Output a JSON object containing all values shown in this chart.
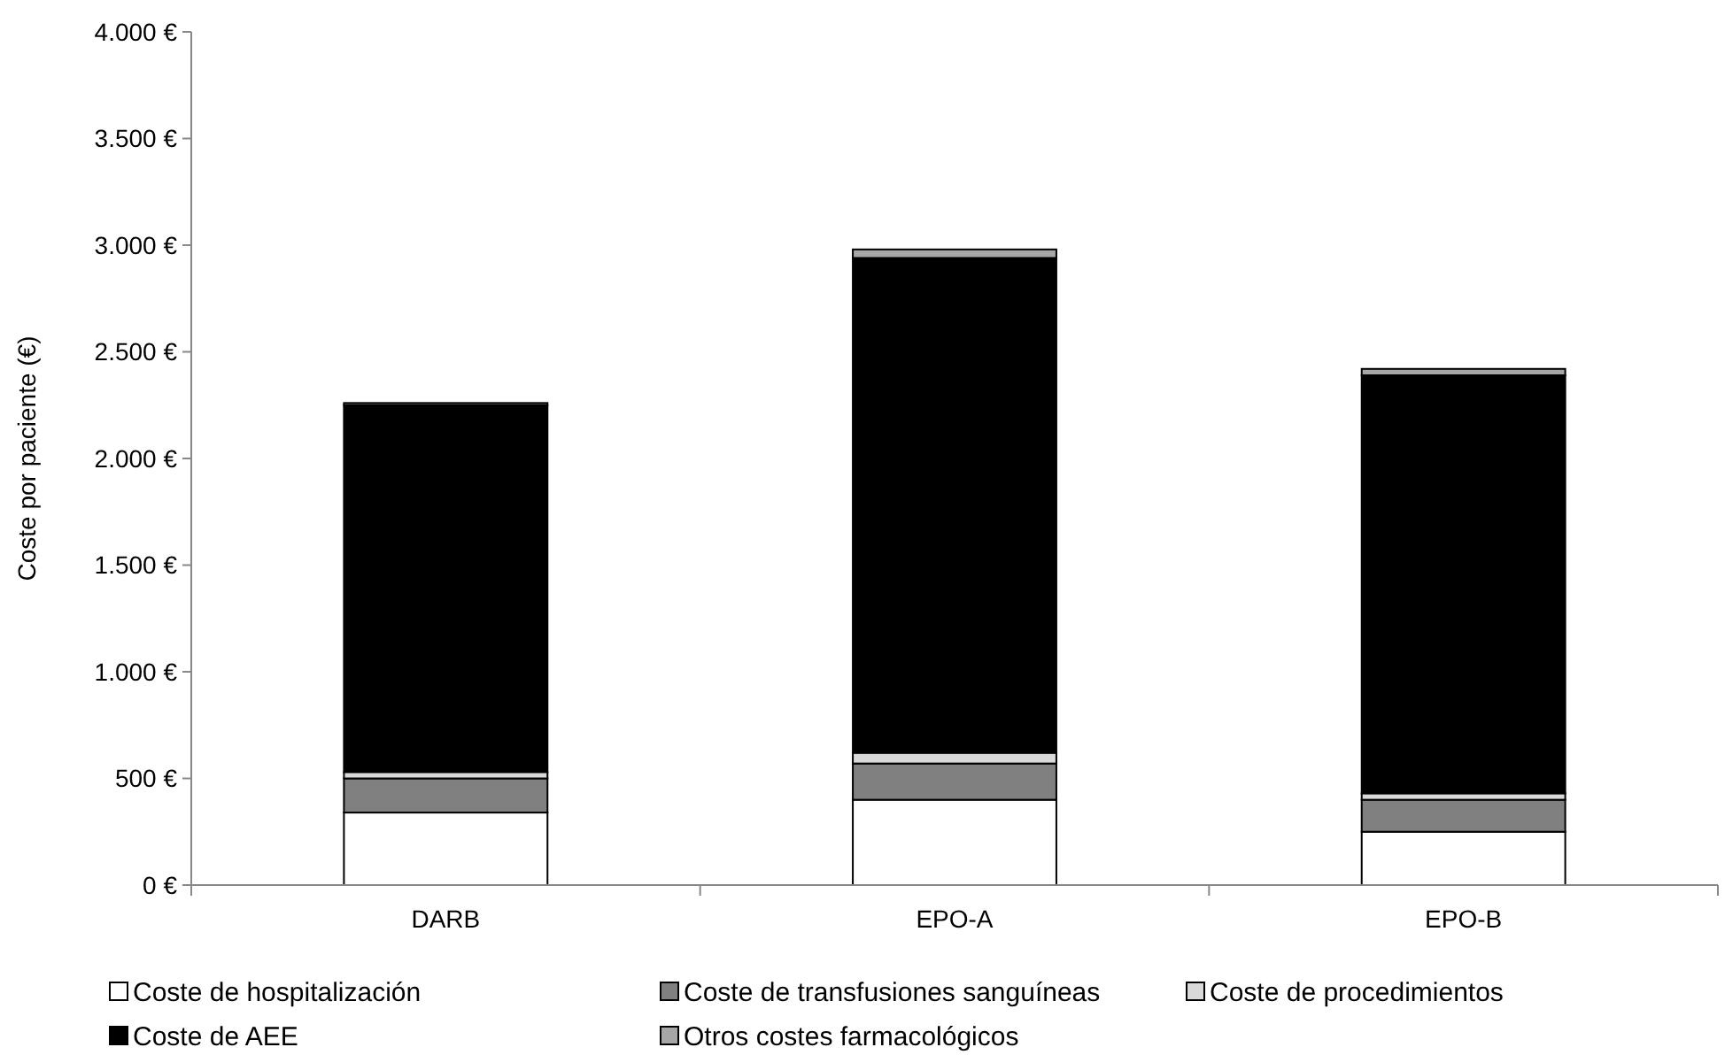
{
  "chart_data": {
    "type": "bar",
    "stacked": true,
    "ylabel": "Coste por paciente (€)",
    "categories": [
      "DARB",
      "EPO-A",
      "EPO-B"
    ],
    "series": [
      {
        "name": "Coste de hospitalización",
        "color": "#ffffff",
        "values": [
          340,
          400,
          250
        ]
      },
      {
        "name": "Coste de transfusiones sanguíneas",
        "color": "#808080",
        "values": [
          160,
          170,
          150
        ]
      },
      {
        "name": "Coste de procedimientos",
        "color": "#d9d9d9",
        "values": [
          30,
          50,
          30
        ]
      },
      {
        "name": "Coste de AEE",
        "color": "#000000",
        "values": [
          1720,
          2320,
          1960
        ]
      },
      {
        "name": "Otros costes farmacológicos",
        "color": "#a6a6a6",
        "values": [
          10,
          40,
          30
        ]
      }
    ],
    "ylim": [
      0,
      4000
    ],
    "yticks": [
      {
        "value": 0,
        "label": "0 €"
      },
      {
        "value": 500,
        "label": "500 €"
      },
      {
        "value": 1000,
        "label": "1.000 €"
      },
      {
        "value": 1500,
        "label": "1.500 €"
      },
      {
        "value": 2000,
        "label": "2.000 €"
      },
      {
        "value": 2500,
        "label": "2.500 €"
      },
      {
        "value": 3000,
        "label": "3.000 €"
      },
      {
        "value": 3500,
        "label": "3.500 €"
      },
      {
        "value": 4000,
        "label": "4.000 €"
      }
    ],
    "grid": false,
    "legend": "bottom"
  }
}
